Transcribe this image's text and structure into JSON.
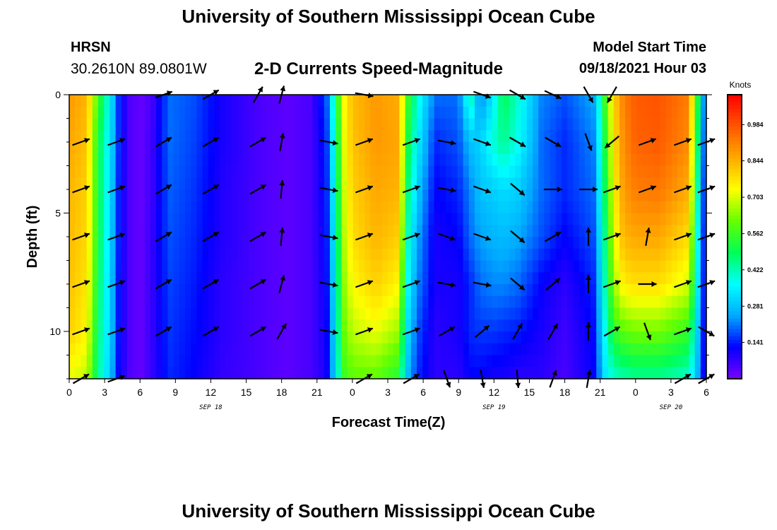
{
  "header": {
    "title": "University of Southern Mississippi Ocean Cube",
    "station": "HRSN",
    "coords": "30.2610N  89.0801W",
    "plot_title": "2-D Currents Speed-Magnitude",
    "model_label": "Model Start Time",
    "model_time": "09/18/2021 Hour 03"
  },
  "footer": {
    "title": "University of Southern Mississippi Ocean Cube"
  },
  "chart_data": {
    "type": "heatmap",
    "title": "2-D Currents Speed-Magnitude",
    "xlabel": "Forecast Time(Z)",
    "ylabel": "Depth (ft)",
    "x_ticks": [
      "0",
      "3",
      "6",
      "9",
      "12",
      "15",
      "18",
      "21",
      "0",
      "3",
      "6",
      "9",
      "12",
      "15",
      "18",
      "21",
      "0",
      "3",
      "6"
    ],
    "x_range_hours": [
      0,
      54
    ],
    "date_labels": [
      {
        "text": "SEP 18",
        "hour": 12
      },
      {
        "text": "SEP 19",
        "hour": 36
      },
      {
        "text": "SEP 20",
        "hour": 51
      }
    ],
    "y_ticks": [
      0,
      5,
      10
    ],
    "y_range": [
      0,
      12
    ],
    "y_inverted": true,
    "colorbar": {
      "unit": "Knots",
      "ticks": [
        0.984,
        0.844,
        0.703,
        0.562,
        0.422,
        0.281,
        0.141
      ],
      "range": [
        0.0,
        1.1
      ],
      "colormap": [
        "#7a00ff",
        "#0000ff",
        "#00aaff",
        "#00ffff",
        "#00ff55",
        "#66ff00",
        "#ffff00",
        "#ffaa00",
        "#ff5500",
        "#ff0000"
      ]
    },
    "speed_hours": [
      0,
      1.5,
      2.5,
      3.5,
      4.2,
      5,
      6,
      7,
      8.5,
      10.5,
      13,
      16,
      18.5,
      20.5,
      21.8,
      22.5,
      23.2,
      24,
      26,
      28,
      28.5,
      29.5,
      31,
      33,
      34,
      34.8,
      36,
      36.8,
      38,
      40,
      42,
      44.5,
      45.5,
      46.2,
      47,
      48,
      50,
      52.5,
      53.3,
      54
    ],
    "speed_depths": [
      0,
      2,
      4,
      6,
      8,
      10,
      12
    ],
    "speed_knots": [
      [
        0.88,
        0.84,
        0.56,
        0.35,
        0.15,
        0.05,
        0.02,
        0.05,
        0.2,
        0.18,
        0.1,
        0.05,
        0.03,
        0.05,
        0.18,
        0.45,
        0.72,
        0.83,
        0.88,
        0.85,
        0.6,
        0.4,
        0.2,
        0.2,
        0.45,
        0.2,
        0.35,
        0.5,
        0.4,
        0.22,
        0.18,
        0.25,
        0.6,
        0.8,
        0.92,
        0.97,
        0.98,
        0.92,
        0.5,
        0.1
      ],
      [
        0.86,
        0.82,
        0.5,
        0.33,
        0.15,
        0.05,
        0.02,
        0.06,
        0.2,
        0.17,
        0.1,
        0.05,
        0.03,
        0.05,
        0.15,
        0.4,
        0.7,
        0.82,
        0.88,
        0.86,
        0.55,
        0.35,
        0.15,
        0.18,
        0.28,
        0.3,
        0.4,
        0.45,
        0.38,
        0.2,
        0.15,
        0.22,
        0.55,
        0.78,
        0.9,
        0.96,
        0.97,
        0.9,
        0.45,
        0.08
      ],
      [
        0.84,
        0.8,
        0.5,
        0.32,
        0.14,
        0.05,
        0.02,
        0.06,
        0.19,
        0.16,
        0.09,
        0.05,
        0.03,
        0.05,
        0.14,
        0.38,
        0.68,
        0.8,
        0.86,
        0.84,
        0.5,
        0.3,
        0.12,
        0.15,
        0.22,
        0.28,
        0.3,
        0.32,
        0.3,
        0.2,
        0.15,
        0.2,
        0.52,
        0.75,
        0.88,
        0.92,
        0.93,
        0.85,
        0.4,
        0.06
      ],
      [
        0.83,
        0.79,
        0.5,
        0.31,
        0.14,
        0.05,
        0.02,
        0.07,
        0.18,
        0.15,
        0.09,
        0.05,
        0.03,
        0.05,
        0.13,
        0.36,
        0.66,
        0.78,
        0.84,
        0.8,
        0.45,
        0.25,
        0.1,
        0.12,
        0.2,
        0.24,
        0.26,
        0.27,
        0.25,
        0.18,
        0.12,
        0.18,
        0.48,
        0.72,
        0.84,
        0.86,
        0.86,
        0.78,
        0.35,
        0.06
      ],
      [
        0.82,
        0.77,
        0.48,
        0.3,
        0.13,
        0.05,
        0.02,
        0.07,
        0.17,
        0.14,
        0.08,
        0.05,
        0.03,
        0.05,
        0.12,
        0.34,
        0.63,
        0.74,
        0.8,
        0.74,
        0.4,
        0.22,
        0.1,
        0.1,
        0.15,
        0.2,
        0.22,
        0.22,
        0.2,
        0.12,
        0.08,
        0.15,
        0.45,
        0.66,
        0.76,
        0.78,
        0.78,
        0.7,
        0.32,
        0.06
      ],
      [
        0.8,
        0.74,
        0.46,
        0.3,
        0.13,
        0.05,
        0.02,
        0.07,
        0.16,
        0.13,
        0.08,
        0.05,
        0.03,
        0.05,
        0.11,
        0.32,
        0.6,
        0.68,
        0.72,
        0.65,
        0.35,
        0.18,
        0.08,
        0.1,
        0.15,
        0.16,
        0.16,
        0.15,
        0.14,
        0.1,
        0.06,
        0.13,
        0.4,
        0.55,
        0.6,
        0.62,
        0.62,
        0.55,
        0.28,
        0.06
      ],
      [
        0.72,
        0.68,
        0.44,
        0.28,
        0.12,
        0.05,
        0.02,
        0.07,
        0.15,
        0.12,
        0.07,
        0.05,
        0.03,
        0.05,
        0.1,
        0.3,
        0.55,
        0.6,
        0.6,
        0.52,
        0.3,
        0.15,
        0.08,
        0.08,
        0.12,
        0.12,
        0.1,
        0.1,
        0.08,
        0.08,
        0.05,
        0.12,
        0.35,
        0.4,
        0.42,
        0.44,
        0.44,
        0.4,
        0.25,
        0.06
      ]
    ],
    "arrow_hours": [
      1,
      4,
      8,
      12,
      16,
      18,
      22,
      25,
      29,
      32,
      35,
      38,
      41,
      44,
      46,
      49,
      52,
      54
    ],
    "arrow_depths": [
      0,
      2,
      4,
      6,
      8,
      10,
      12
    ],
    "arrow_directions_deg": [
      [
        null,
        null,
        70,
        60,
        30,
        15,
        null,
        100,
        null,
        null,
        110,
        120,
        115,
        150,
        210,
        null,
        null,
        null
      ],
      [
        70,
        70,
        60,
        60,
        60,
        10,
        100,
        70,
        70,
        100,
        110,
        120,
        120,
        160,
        230,
        70,
        70,
        70
      ],
      [
        70,
        70,
        60,
        60,
        60,
        5,
        100,
        70,
        70,
        100,
        110,
        130,
        90,
        90,
        70,
        70,
        70,
        70
      ],
      [
        70,
        70,
        60,
        60,
        60,
        5,
        100,
        70,
        70,
        110,
        110,
        130,
        60,
        0,
        70,
        10,
        70,
        70
      ],
      [
        70,
        70,
        60,
        60,
        60,
        15,
        100,
        70,
        70,
        100,
        100,
        130,
        50,
        0,
        70,
        90,
        70,
        70
      ],
      [
        70,
        70,
        60,
        60,
        60,
        30,
        100,
        70,
        70,
        60,
        50,
        30,
        30,
        0,
        60,
        160,
        70,
        120
      ],
      [
        60,
        70,
        null,
        null,
        null,
        null,
        null,
        60,
        60,
        160,
        170,
        175,
        20,
        10,
        null,
        null,
        60,
        60
      ]
    ]
  }
}
